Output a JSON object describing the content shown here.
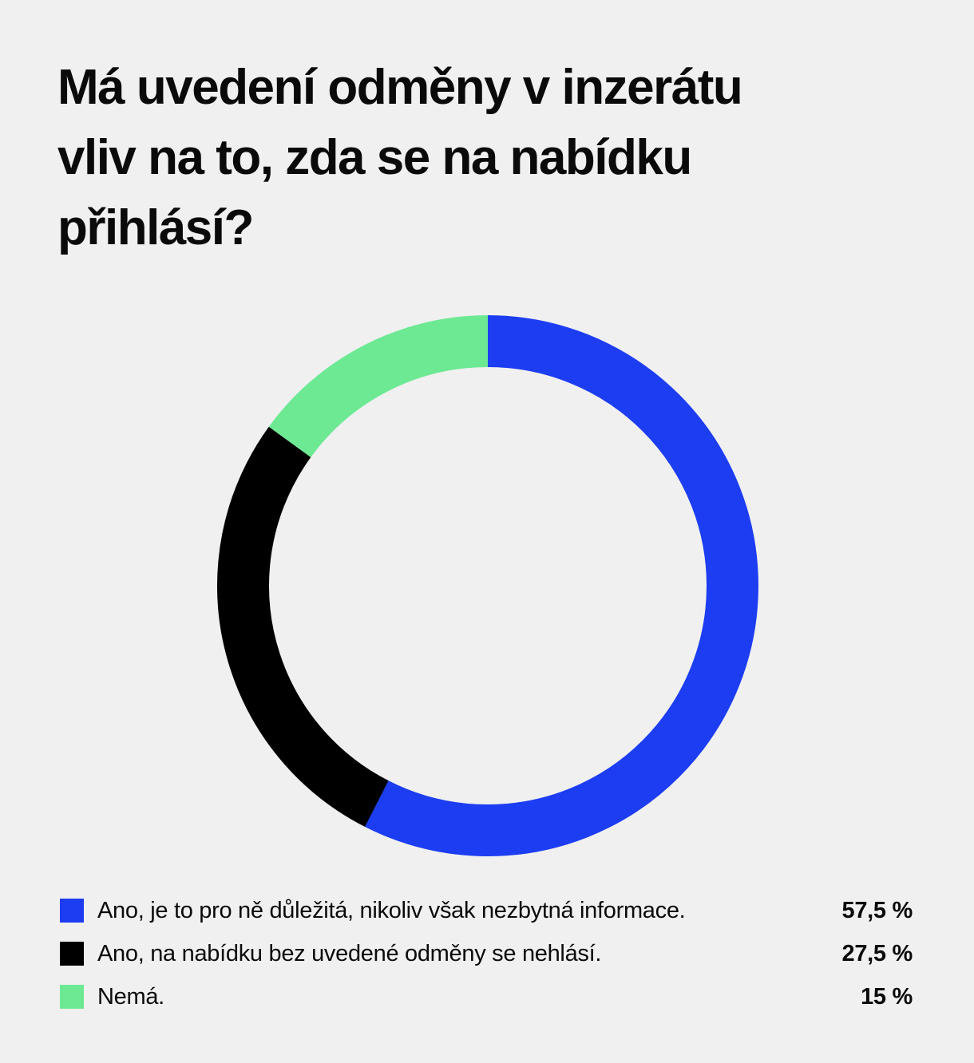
{
  "header": {
    "title_lines": [
      "Má uvedení odměny v inzerátu",
      "vliv na to, zda se na nabídku",
      "přihlásí?"
    ]
  },
  "colors": {
    "background": "#F0F0F0",
    "text": "#0A0A0A"
  },
  "chart_data": {
    "type": "pie",
    "subtype": "donut",
    "title": "Má uvedení odměny v inzerátu vliv na to, zda se na nabídku přihlásí?",
    "start_angle_deg": -90,
    "direction": "clockwise",
    "legend_position": "bottom",
    "series": [
      {
        "label": "Ano, je to pro ně důležitá, nikoliv však nezbytná informace.",
        "value": 57.5,
        "display": "57,5 %",
        "color": "#1C3DF2"
      },
      {
        "label": "Ano, na nabídku bez uvedené odměny se nehlásí.",
        "value": 27.5,
        "display": "27,5 %",
        "color": "#000000"
      },
      {
        "label": "Nemá.",
        "value": 15,
        "display": "15 %",
        "color": "#6DE993"
      }
    ]
  }
}
